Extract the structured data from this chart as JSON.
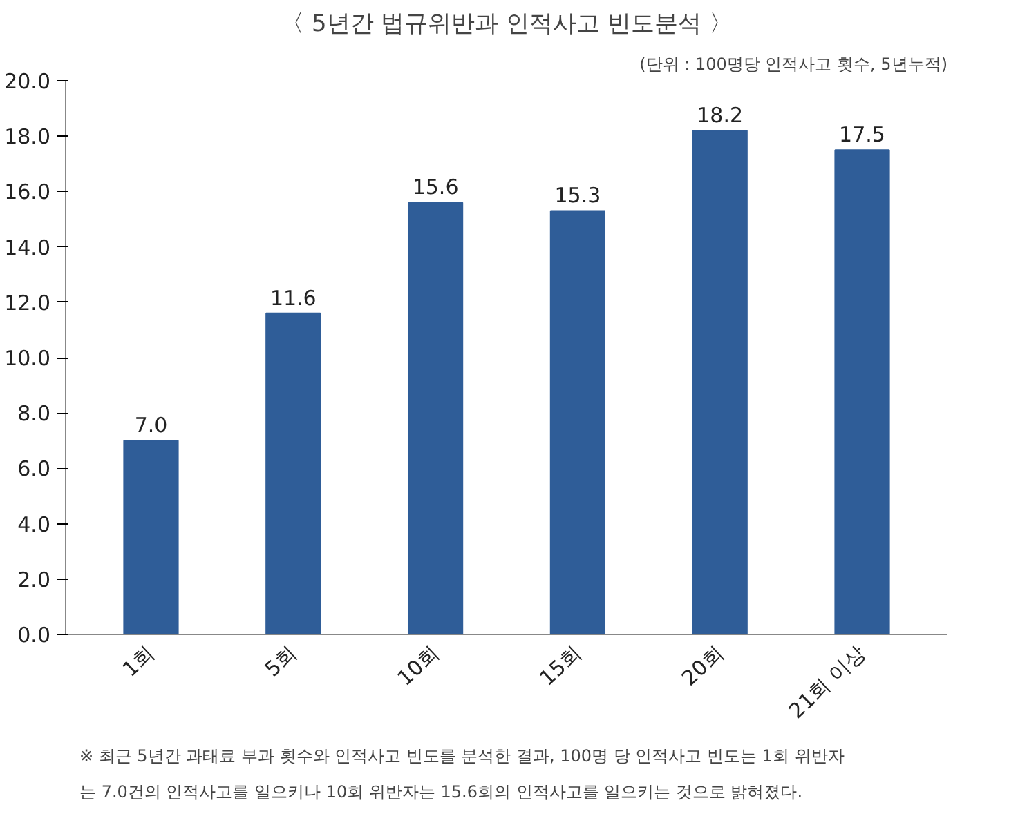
{
  "chart_data": {
    "type": "bar",
    "title": "〈 5년간 법규위반과 인적사고 빈도분석 〉",
    "subtitle": "(단위 : 100명당 인적사고 횟수, 5년누적)",
    "categories": [
      "1회",
      "5회",
      "10회",
      "15회",
      "20회",
      "21회 이상"
    ],
    "values": [
      7.0,
      11.6,
      15.6,
      15.3,
      18.2,
      17.5
    ],
    "value_labels": [
      "7.0",
      "11.6",
      "15.6",
      "15.3",
      "18.2",
      "17.5"
    ],
    "color": "#2f5d98",
    "ylim": [
      0,
      20
    ],
    "yticks": [
      {
        "value": 0,
        "label": "0.0"
      },
      {
        "value": 2,
        "label": "2.0"
      },
      {
        "value": 4,
        "label": "4.0"
      },
      {
        "value": 6,
        "label": "6.0"
      },
      {
        "value": 8,
        "label": "8.0"
      },
      {
        "value": 10,
        "label": "10.0"
      },
      {
        "value": 12,
        "label": "12.0"
      },
      {
        "value": 14,
        "label": "14.0"
      },
      {
        "value": 16,
        "label": "16.0"
      },
      {
        "value": 18,
        "label": "18.0"
      },
      {
        "value": 20,
        "label": "20.0"
      }
    ],
    "grid": false,
    "annotations": [
      "※ 최근 5년간 과태료 부과 횟수와 인적사고 빈도를 분석한 결과, 100명 당 인적사고 빈도는 1회 위반자",
      "는 7.0건의 인적사고를 일으키나 10회 위반자는 15.6회의 인적사고를 일으키는 것으로 밝혀졌다."
    ]
  }
}
